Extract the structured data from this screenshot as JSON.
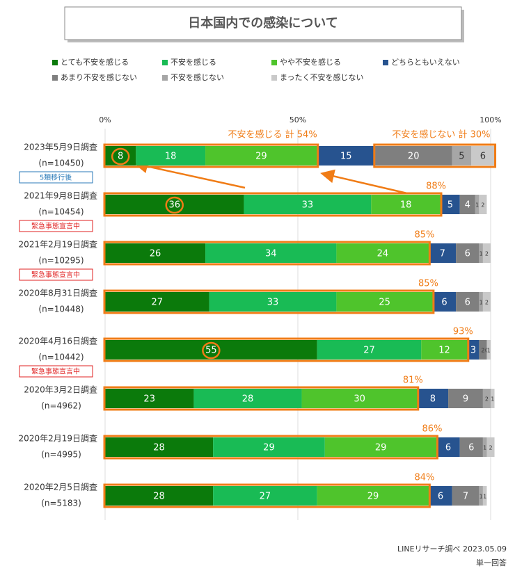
{
  "chart_data": {
    "type": "stacked-bar-horizontal",
    "title": "日本国内での感染について",
    "categories": [
      "2023年5月9日調査",
      "2021年9月8日調査",
      "2021年2月19日調査",
      "2020年8月31日調査",
      "2020年4月16日調査",
      "2020年3月2日調査",
      "2020年2月19日調査",
      "2020年2月5日調査"
    ],
    "n_labels": [
      "(n=10450)",
      "(n=10454)",
      "(n=10295)",
      "(n=10448)",
      "(n=10442)",
      "(n=4962)",
      "(n=4995)",
      "(n=5183)"
    ],
    "badges": [
      "5類移行後",
      "緊急事態宣言中",
      "緊急事態宣言中",
      null,
      "緊急事態宣言中",
      null,
      null,
      null
    ],
    "badge_colors": [
      "#2a7ab8",
      "#e02020",
      "#e02020",
      null,
      "#e02020",
      null,
      null,
      null
    ],
    "series": [
      {
        "name": "とても不安を感じる",
        "color": "#0b7a0b",
        "values": [
          8,
          36,
          26,
          27,
          55,
          23,
          28,
          28
        ]
      },
      {
        "name": "不安を感じる",
        "color": "#19bb55",
        "values": [
          18,
          33,
          34,
          33,
          27,
          28,
          29,
          27
        ]
      },
      {
        "name": "やや不安を感じる",
        "color": "#4fc42c",
        "values": [
          29,
          18,
          24,
          25,
          12,
          30,
          29,
          29
        ]
      },
      {
        "name": "どちらともいえない",
        "color": "#27538f",
        "values": [
          15,
          5,
          7,
          6,
          3,
          8,
          6,
          6
        ]
      },
      {
        "name": "あまり不安を感じない",
        "color": "#7f7f7f",
        "values": [
          20,
          4,
          6,
          6,
          2,
          9,
          6,
          7
        ]
      },
      {
        "name": "不安を感じない",
        "color": "#a6a6a6",
        "values": [
          5,
          1,
          1,
          1,
          0,
          2,
          1,
          1
        ]
      },
      {
        "name": "まったく不安を感じない",
        "color": "#c9c9c9",
        "values": [
          6,
          2,
          2,
          2,
          1,
          1,
          2,
          1
        ]
      }
    ],
    "totals": [
      null,
      {
        "value": 88,
        "label": "88%"
      },
      {
        "value": 85,
        "label": "85%"
      },
      {
        "value": 85,
        "label": "85%"
      },
      {
        "value": 93,
        "label": "93%"
      },
      {
        "value": 81,
        "label": "81%"
      },
      {
        "value": 86,
        "label": "86%"
      },
      {
        "value": 84,
        "label": "84%"
      }
    ],
    "annotations": [
      "不安を感じる 計 54%",
      "不安を感じない 計 30%"
    ],
    "circled": [
      "chart_data.series.0.values.0",
      "chart_data.series.0.values.1",
      "chart_data.series.0.values.4"
    ],
    "xlim": [
      0,
      100
    ],
    "xticks": [
      {
        "value": 0,
        "label": "0%"
      },
      {
        "value": 50,
        "label": "50%"
      },
      {
        "value": 100,
        "label": "100%"
      }
    ],
    "grid": true,
    "source": "LINEリサーチ調べ 2023.05.09",
    "note": "単一回答"
  }
}
